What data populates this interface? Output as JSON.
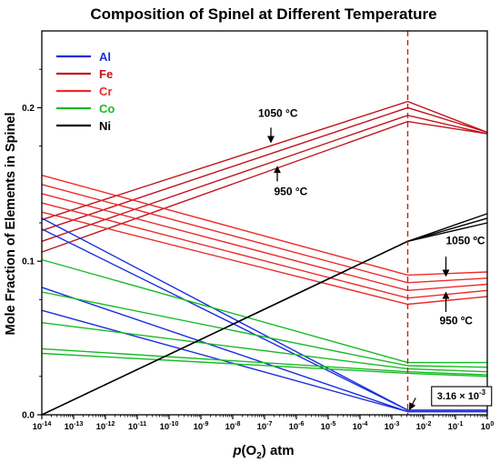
{
  "chart_data": {
    "type": "line",
    "title": "Composition of Spinel at Different Temperature",
    "xlabel_parts": [
      "p",
      "(O",
      "2",
      ") atm"
    ],
    "ylabel": "Mole Fraction of Elements in Spinel",
    "x_scale": "log",
    "x_unit_label": "p(O2) atm",
    "xlim": [
      -14,
      0
    ],
    "ylim": [
      0,
      0.25
    ],
    "x_ticks": [
      -14,
      -13,
      -12,
      -11,
      -10,
      -9,
      -8,
      -7,
      -6,
      -5,
      -4,
      -3,
      -2,
      -1,
      0
    ],
    "y_ticks": [
      {
        "value": 0.0,
        "label": "0.0"
      },
      {
        "value": 0.1,
        "label": "0.1"
      },
      {
        "value": 0.2,
        "label": "0.2"
      }
    ],
    "legend_position": "top-left",
    "legend": [
      {
        "name": "Al",
        "color": "#1a2ee0"
      },
      {
        "name": "Fe",
        "color": "#c0141c"
      },
      {
        "name": "Cr",
        "color": "#ee2a2a"
      },
      {
        "name": "Co",
        "color": "#18bb24"
      },
      {
        "name": "Ni",
        "color": "#000000"
      }
    ],
    "vline": {
      "x": -2.5,
      "color": "#cc1a1a",
      "style": "dashed"
    },
    "annotations": [
      {
        "id": "fe-1050",
        "label": "1050",
        "unit": "°C",
        "tx": -7.2,
        "ty": 0.194,
        "arrow_from": [
          -6.8,
          0.187
        ],
        "arrow_to": [
          -6.8,
          0.178
        ]
      },
      {
        "id": "fe-950",
        "label": "950",
        "unit": "°C",
        "tx": -6.7,
        "ty": 0.143,
        "arrow_from": [
          -6.6,
          0.152
        ],
        "arrow_to": [
          -6.6,
          0.161
        ]
      },
      {
        "id": "cr-1050",
        "label": "1050",
        "unit": "ºC",
        "tx": -1.3,
        "ty": 0.111,
        "arrow_from": [
          -1.3,
          0.103
        ],
        "arrow_to": [
          -1.3,
          0.091
        ]
      },
      {
        "id": "cr-950",
        "label": "950",
        "unit": "ºC",
        "tx": -1.5,
        "ty": 0.059,
        "arrow_from": [
          -1.3,
          0.067
        ],
        "arrow_to": [
          -1.3,
          0.079
        ]
      }
    ],
    "boxed_label": {
      "text": "3.16 × 10",
      "sup": "-3",
      "x": -1.75,
      "y": 0.013,
      "arrow_from": [
        -2.25,
        0.011
      ],
      "arrow_to": [
        -2.43,
        0.004
      ]
    },
    "series": [
      {
        "element": "Fe",
        "color": "#c0141c",
        "x": [
          -14,
          -2.5,
          0
        ],
        "y": [
          0.127,
          0.204,
          0.184
        ]
      },
      {
        "element": "Fe",
        "color": "#c0141c",
        "x": [
          -14,
          -2.5,
          0
        ],
        "y": [
          0.12,
          0.2,
          0.184
        ]
      },
      {
        "element": "Fe",
        "color": "#c0141c",
        "x": [
          -14,
          -2.5,
          0
        ],
        "y": [
          0.113,
          0.195,
          0.183
        ]
      },
      {
        "element": "Fe",
        "color": "#c0141c",
        "x": [
          -14,
          -2.5,
          0
        ],
        "y": [
          0.106,
          0.191,
          0.183
        ]
      },
      {
        "element": "Cr",
        "color": "#ee2a2a",
        "x": [
          -14,
          -2.5,
          0
        ],
        "y": [
          0.156,
          0.091,
          0.093
        ]
      },
      {
        "element": "Cr",
        "color": "#ee2a2a",
        "x": [
          -14,
          -2.5,
          0
        ],
        "y": [
          0.15,
          0.086,
          0.089
        ]
      },
      {
        "element": "Cr",
        "color": "#ee2a2a",
        "x": [
          -14,
          -2.5,
          0
        ],
        "y": [
          0.144,
          0.081,
          0.085
        ]
      },
      {
        "element": "Cr",
        "color": "#ee2a2a",
        "x": [
          -14,
          -2.5,
          0
        ],
        "y": [
          0.138,
          0.076,
          0.081
        ]
      },
      {
        "element": "Cr",
        "color": "#ee2a2a",
        "x": [
          -14,
          -2.5,
          0
        ],
        "y": [
          0.132,
          0.072,
          0.077
        ]
      },
      {
        "element": "Al",
        "color": "#1a2ee0",
        "x": [
          -14,
          -2.5,
          0
        ],
        "y": [
          0.128,
          0.003,
          0.003
        ]
      },
      {
        "element": "Al",
        "color": "#1a2ee0",
        "x": [
          -14,
          -2.5,
          0
        ],
        "y": [
          0.121,
          0.003,
          0.003
        ]
      },
      {
        "element": "Al",
        "color": "#1a2ee0",
        "x": [
          -14,
          -2.5,
          0
        ],
        "y": [
          0.083,
          0.002,
          0.002
        ]
      },
      {
        "element": "Al",
        "color": "#1a2ee0",
        "x": [
          -14,
          -2.5,
          0
        ],
        "y": [
          0.068,
          0.002,
          0.002
        ]
      },
      {
        "element": "Co",
        "color": "#18bb24",
        "x": [
          -14,
          -2.5,
          0
        ],
        "y": [
          0.101,
          0.034,
          0.034
        ]
      },
      {
        "element": "Co",
        "color": "#18bb24",
        "x": [
          -14,
          -2.5,
          0
        ],
        "y": [
          0.08,
          0.032,
          0.031
        ]
      },
      {
        "element": "Co",
        "color": "#18bb24",
        "x": [
          -14,
          -2.5,
          0
        ],
        "y": [
          0.06,
          0.03,
          0.028
        ]
      },
      {
        "element": "Co",
        "color": "#18bb24",
        "x": [
          -14,
          -2.5,
          0
        ],
        "y": [
          0.043,
          0.028,
          0.026
        ]
      },
      {
        "element": "Co",
        "color": "#18bb24",
        "x": [
          -14,
          -2.5,
          0
        ],
        "y": [
          0.04,
          0.027,
          0.025
        ]
      },
      {
        "element": "Ni",
        "color": "#000000",
        "x": [
          -14,
          -2.5,
          0
        ],
        "y": [
          0.0,
          0.113,
          0.131
        ]
      },
      {
        "element": "Ni",
        "color": "#000000",
        "x": [
          -14,
          -2.5,
          0
        ],
        "y": [
          0.0,
          0.113,
          0.128
        ]
      },
      {
        "element": "Ni",
        "color": "#000000",
        "x": [
          -14,
          -2.5,
          0
        ],
        "y": [
          0.0,
          0.113,
          0.125
        ]
      }
    ]
  }
}
